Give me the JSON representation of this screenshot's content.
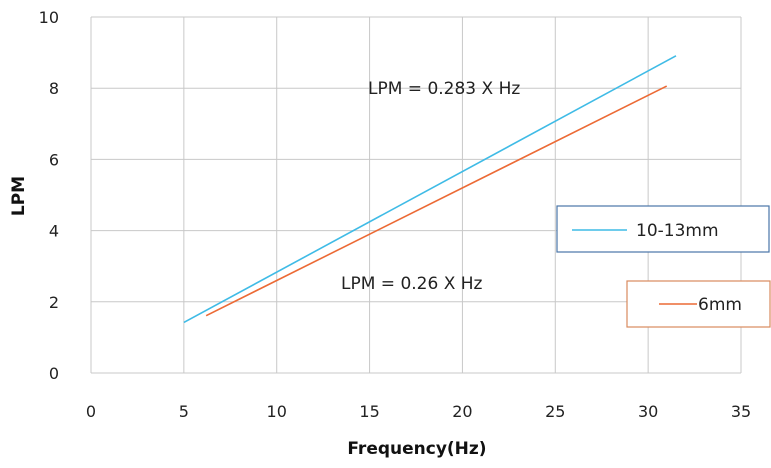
{
  "chart_data": {
    "type": "line",
    "xlabel": "Frequency(Hz)",
    "ylabel": "LPM",
    "xlim": [
      0,
      35
    ],
    "ylim": [
      0,
      10
    ],
    "xticks": [
      0,
      5,
      10,
      15,
      20,
      25,
      30,
      35
    ],
    "yticks": [
      0,
      2,
      4,
      6,
      8,
      10
    ],
    "grid": true,
    "series": [
      {
        "name": "10-13mm",
        "color": "#3fbbe6",
        "x": [
          5,
          31.5
        ],
        "y": [
          1.42,
          8.91
        ]
      },
      {
        "name": "6mm",
        "color": "#ec6a35",
        "x": [
          6.2,
          31
        ],
        "y": [
          1.61,
          8.06
        ]
      }
    ],
    "annotations": [
      "LPM = 0.283 X Hz",
      "LPM = 0.26 X Hz"
    ]
  }
}
